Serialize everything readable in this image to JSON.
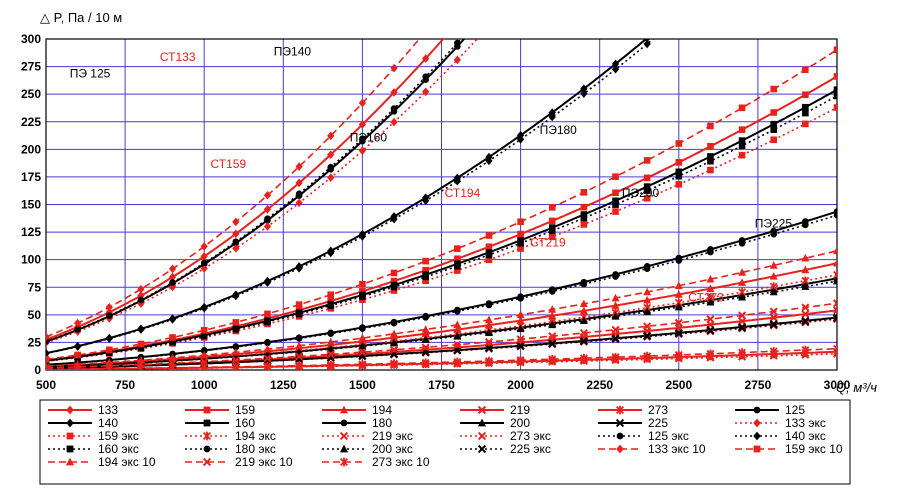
{
  "chart_data": {
    "type": "line",
    "ylabel": "△ P, Па / 10 м",
    "xlabel": "Q, м³/ч",
    "xlim": [
      500,
      3000
    ],
    "ylim": [
      0,
      300
    ],
    "x_ticks": [
      500,
      750,
      1000,
      1250,
      1500,
      1750,
      2000,
      2250,
      2500,
      2750,
      3000
    ],
    "y_ticks": [
      0,
      25,
      50,
      75,
      100,
      125,
      150,
      175,
      200,
      225,
      250,
      275,
      300
    ],
    "grid": true,
    "colors": {
      "black": "#000000",
      "red": "#e8211c",
      "grid": "#4a3bd4"
    },
    "annotations": [
      {
        "text": "ПЭ 125",
        "x": 575,
        "y": 265,
        "color": "#000000"
      },
      {
        "text": "СТ133",
        "x": 860,
        "y": 280,
        "color": "#e8211c"
      },
      {
        "text": "ПЭ140",
        "x": 1220,
        "y": 285,
        "color": "#000000"
      },
      {
        "text": "СТ159",
        "x": 1020,
        "y": 183,
        "color": "#e8211c"
      },
      {
        "text": "ПЭ160",
        "x": 1460,
        "y": 207,
        "color": "#000000"
      },
      {
        "text": "ПЭ180",
        "x": 2060,
        "y": 214,
        "color": "#000000"
      },
      {
        "text": "СТ194",
        "x": 1760,
        "y": 157,
        "color": "#e8211c"
      },
      {
        "text": "ПЭ200",
        "x": 2320,
        "y": 157,
        "color": "#000000"
      },
      {
        "text": "СТ219",
        "x": 2030,
        "y": 112,
        "color": "#e8211c"
      },
      {
        "text": "ПЭ225",
        "x": 2740,
        "y": 129,
        "color": "#000000"
      },
      {
        "text": "СТ273",
        "x": 2530,
        "y": 62,
        "color": "#e8211c"
      }
    ],
    "series": [
      {
        "name": "133",
        "color": "#e8211c",
        "dash": "solid",
        "marker": "diamond",
        "k": 103,
        "n": 1.9
      },
      {
        "name": "159",
        "color": "#e8211c",
        "dash": "solid",
        "marker": "square",
        "k": 33,
        "n": 1.9
      },
      {
        "name": "194",
        "color": "#e8211c",
        "dash": "solid",
        "marker": "triangle",
        "k": 12,
        "n": 1.9
      },
      {
        "name": "219",
        "color": "#e8211c",
        "dash": "solid",
        "marker": "cross",
        "k": 6.7,
        "n": 1.9
      },
      {
        "name": "273",
        "color": "#e8211c",
        "dash": "solid",
        "marker": "star",
        "k": 2.05,
        "n": 1.9
      },
      {
        "name": "125",
        "color": "#000000",
        "dash": "solid",
        "marker": "circle",
        "k": 96,
        "n": 1.9
      },
      {
        "name": "140",
        "color": "#000000",
        "dash": "solid",
        "marker": "diamond",
        "k": 57,
        "n": 1.9
      },
      {
        "name": "160",
        "color": "#000000",
        "dash": "solid",
        "marker": "square",
        "k": 31.5,
        "n": 1.9
      },
      {
        "name": "180",
        "color": "#000000",
        "dash": "solid",
        "marker": "circle",
        "k": 17.8,
        "n": 1.9
      },
      {
        "name": "200",
        "color": "#000000",
        "dash": "solid",
        "marker": "triangle",
        "k": 10.3,
        "n": 1.9
      },
      {
        "name": "225",
        "color": "#000000",
        "dash": "solid",
        "marker": "cross",
        "k": 5.9,
        "n": 1.9
      },
      {
        "name": "133 экс",
        "color": "#e8211c",
        "dash": "dotted",
        "marker": "diamond",
        "k": 92,
        "n": 1.9
      },
      {
        "name": "159 экс",
        "color": "#e8211c",
        "dash": "dotted",
        "marker": "square",
        "k": 29.5,
        "n": 1.9
      },
      {
        "name": "194 экс",
        "color": "#e8211c",
        "dash": "dotted",
        "marker": "star",
        "k": 10.7,
        "n": 1.9
      },
      {
        "name": "219 экс",
        "color": "#e8211c",
        "dash": "dotted",
        "marker": "cross",
        "k": 5.7,
        "n": 1.9
      },
      {
        "name": "273 экс",
        "color": "#e8211c",
        "dash": "dotted",
        "marker": "cross",
        "k": 1.82,
        "n": 1.9
      },
      {
        "name": "125 экс",
        "color": "#000000",
        "dash": "dotted",
        "marker": "circle",
        "k": 97,
        "n": 1.9
      },
      {
        "name": "140 экс",
        "color": "#000000",
        "dash": "dotted",
        "marker": "diamond",
        "k": 56,
        "n": 1.9
      },
      {
        "name": "160 экс",
        "color": "#000000",
        "dash": "dotted",
        "marker": "square",
        "k": 30.8,
        "n": 1.9
      },
      {
        "name": "180 экс",
        "color": "#000000",
        "dash": "dotted",
        "marker": "circle",
        "k": 17.4,
        "n": 1.9
      },
      {
        "name": "200 экс",
        "color": "#000000",
        "dash": "dotted",
        "marker": "triangle",
        "k": 10,
        "n": 1.9
      },
      {
        "name": "225 экс",
        "color": "#000000",
        "dash": "dotted",
        "marker": "cross",
        "k": 5.8,
        "n": 1.9
      },
      {
        "name": "133 экс 10",
        "color": "#e8211c",
        "dash": "dashed",
        "marker": "diamond",
        "k": 112,
        "n": 1.9
      },
      {
        "name": "159 экс 10",
        "color": "#e8211c",
        "dash": "dashed",
        "marker": "square",
        "k": 36,
        "n": 1.9
      },
      {
        "name": "194 экс 10",
        "color": "#e8211c",
        "dash": "dashed",
        "marker": "triangle",
        "k": 13.4,
        "n": 1.9
      },
      {
        "name": "219 экс 10",
        "color": "#e8211c",
        "dash": "dashed",
        "marker": "cross",
        "k": 7.5,
        "n": 1.9
      },
      {
        "name": "273 экс 10",
        "color": "#e8211c",
        "dash": "dashed",
        "marker": "star",
        "k": 2.4,
        "n": 1.9
      }
    ]
  }
}
